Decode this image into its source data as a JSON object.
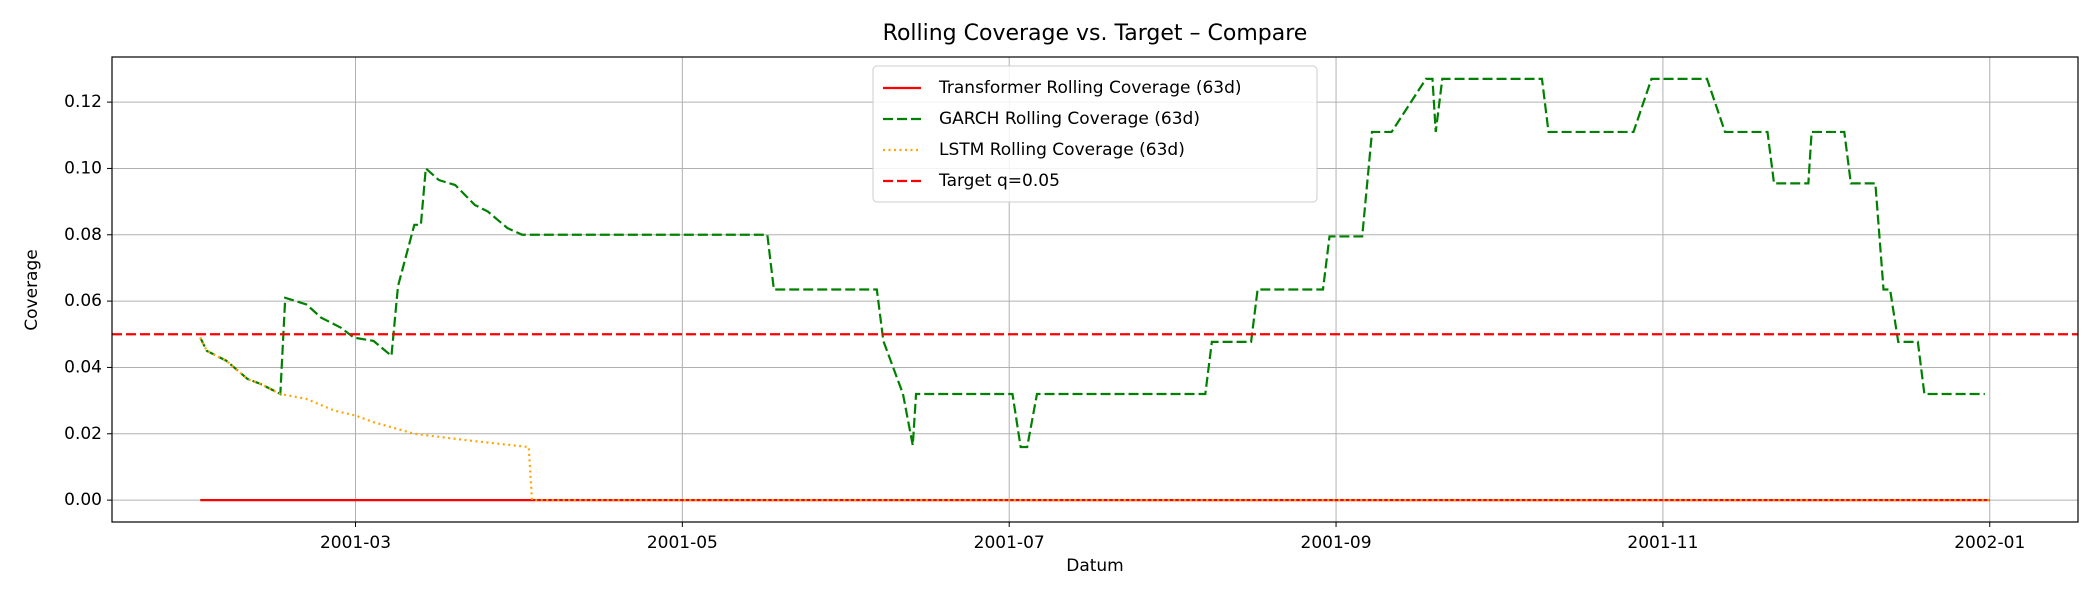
{
  "chart_data": {
    "type": "line",
    "title": "Rolling Coverage vs. Target – Compare",
    "x_label": "Datum",
    "y_label": "Coverage",
    "xlim": [
      1.51,
      13.54
    ],
    "xticks": [
      {
        "value": 3,
        "label": "2001-03"
      },
      {
        "value": 5,
        "label": "2001-05"
      },
      {
        "value": 7,
        "label": "2001-07"
      },
      {
        "value": 9,
        "label": "2001-09"
      },
      {
        "value": 11,
        "label": "2001-11"
      },
      {
        "value": 13,
        "label": "2002-01"
      }
    ],
    "ylim": [
      -0.0066,
      0.1336
    ],
    "yticks": [
      {
        "value": 0,
        "label": "0.00"
      },
      {
        "value": 0.02,
        "label": "0.02"
      },
      {
        "value": 0.04,
        "label": "0.04"
      },
      {
        "value": 0.06,
        "label": "0.06"
      },
      {
        "value": 0.08,
        "label": "0.08"
      },
      {
        "value": 0.1,
        "label": "0.10"
      },
      {
        "value": 0.12,
        "label": "0.12"
      }
    ],
    "grid": true,
    "legend_position": "upper center",
    "series": [
      {
        "name": "Transformer Rolling Coverage (63d)",
        "color": "#ff0000",
        "line_style": "solid",
        "x": [
          2.05,
          13.0
        ],
        "values": [
          0,
          0
        ]
      },
      {
        "name": "GARCH Rolling Coverage (63d)",
        "color": "#008000",
        "line_style": "dashed",
        "x": [
          2.05,
          2.09,
          2.21,
          2.34,
          2.42,
          2.54,
          2.57,
          2.7,
          2.79,
          2.91,
          2.99,
          3.11,
          3.22,
          3.26,
          3.36,
          3.4,
          3.43,
          3.51,
          3.61,
          3.73,
          3.81,
          3.93,
          4.02,
          5.52,
          5.56,
          6.19,
          6.23,
          6.35,
          6.41,
          6.43,
          7.02,
          7.07,
          7.11,
          7.17,
          8.2,
          8.24,
          8.48,
          8.52,
          8.92,
          8.96,
          9.16,
          9.22,
          9.34,
          9.55,
          9.59,
          9.61,
          9.65,
          10.26,
          10.3,
          10.82,
          10.93,
          11.27,
          11.38,
          11.64,
          11.68,
          11.89,
          11.91,
          12.11,
          12.15,
          12.3,
          12.35,
          12.39,
          12.44,
          12.56,
          12.6,
          12.97
        ],
        "values": [
          0.049,
          0.045,
          0.042,
          0.0365,
          0.035,
          0.032,
          0.061,
          0.059,
          0.055,
          0.052,
          0.049,
          0.048,
          0.0435,
          0.0645,
          0.083,
          0.083,
          0.1,
          0.0965,
          0.095,
          0.089,
          0.087,
          0.082,
          0.08,
          0.08,
          0.0635,
          0.0635,
          0.048,
          0.032,
          0.0165,
          0.032,
          0.032,
          0.016,
          0.016,
          0.032,
          0.032,
          0.0477,
          0.0477,
          0.0635,
          0.0635,
          0.0795,
          0.0795,
          0.111,
          0.111,
          0.127,
          0.127,
          0.111,
          0.127,
          0.127,
          0.111,
          0.111,
          0.127,
          0.127,
          0.111,
          0.111,
          0.0955,
          0.0955,
          0.111,
          0.111,
          0.0955,
          0.0955,
          0.0635,
          0.0635,
          0.0477,
          0.0477,
          0.032,
          0.032
        ]
      },
      {
        "name": "LSTM Rolling Coverage (63d)",
        "color": "#ffa500",
        "line_style": "dotted",
        "x": [
          2.05,
          2.09,
          2.21,
          2.34,
          2.42,
          2.54,
          2.7,
          2.87,
          3.0,
          3.11,
          3.36,
          3.69,
          4.06,
          4.08,
          13.0
        ],
        "values": [
          0.049,
          0.045,
          0.042,
          0.0365,
          0.035,
          0.032,
          0.0305,
          0.027,
          0.0255,
          0.0235,
          0.02,
          0.018,
          0.016,
          0,
          0
        ]
      }
    ],
    "target": {
      "name": "Target q=0.05",
      "color": "#ff0000",
      "line_style": "dashed",
      "value": 0.05
    }
  }
}
